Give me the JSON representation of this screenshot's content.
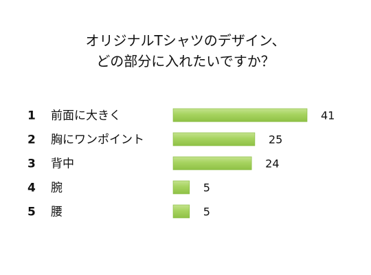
{
  "chart_data": {
    "type": "bar",
    "orientation": "horizontal",
    "title_lines": [
      "オリジナルTシャツのデザイン、",
      "どの部分に入れたいですか？"
    ],
    "ranks": [
      "1",
      "2",
      "3",
      "4",
      "5"
    ],
    "categories": [
      "前面に大きく",
      "胸にワンポイント",
      "背中",
      "腕",
      "腰"
    ],
    "values": [
      41,
      25,
      24,
      5,
      5
    ],
    "xlim": [
      0,
      41
    ],
    "grid": false,
    "legend": "none",
    "bar_color": "#9fd05a"
  }
}
